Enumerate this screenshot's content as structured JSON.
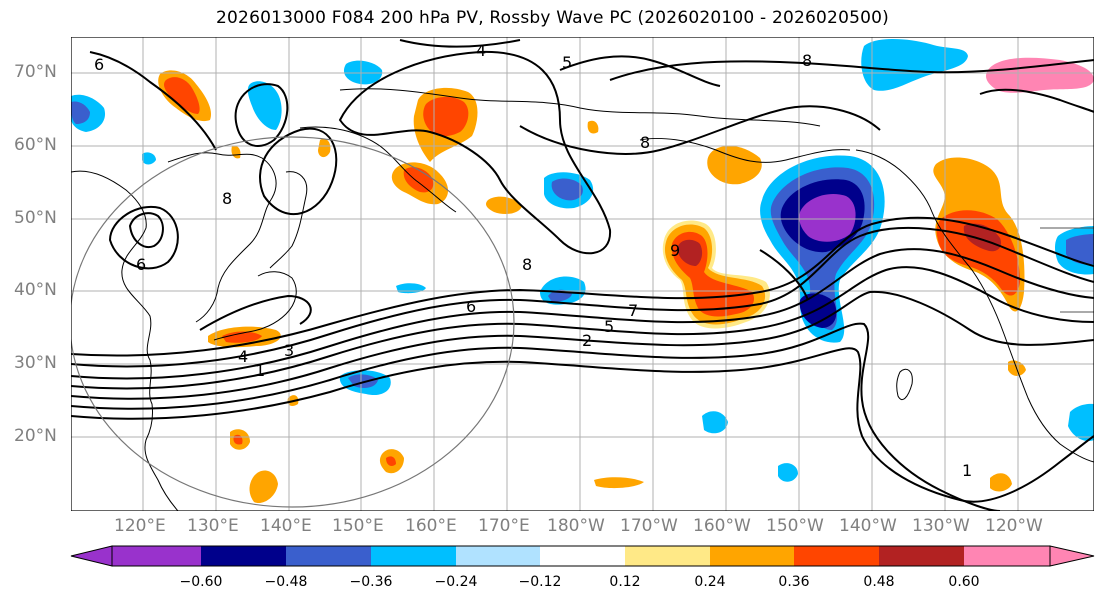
{
  "title": "2026013000 F084 200 hPa PV, Rossby Wave PC (2026020100 - 2026020500)",
  "lat_labels": [
    "70°N",
    "60°N",
    "50°N",
    "40°N",
    "30°N",
    "20°N"
  ],
  "lon_labels": [
    "120°E",
    "130°E",
    "140°E",
    "150°E",
    "160°E",
    "170°E",
    "180°W",
    "170°W",
    "160°W",
    "150°W",
    "140°W",
    "130°W",
    "120°W"
  ],
  "contour_labels": [
    "1",
    "2",
    "4",
    "5",
    "6",
    "7",
    "8",
    "3",
    "9"
  ],
  "colorbar": {
    "tick_labels": [
      "−0.60",
      "−0.48",
      "−0.36",
      "−0.24",
      "−0.12",
      "0.12",
      "0.24",
      "0.36",
      "0.48",
      "0.60"
    ],
    "colors": [
      "#9932cc",
      "#00008b",
      "#3a5fcd",
      "#00bfff",
      "#b0e2ff",
      "#ffffff",
      "#ffe987",
      "#ffa500",
      "#ff4500",
      "#b22222",
      "#ff85b3"
    ]
  },
  "colors": {
    "purple": "#9932cc",
    "navy": "#00008b",
    "royal": "#3a5fcd",
    "sky": "#00bfff",
    "pale_blue": "#b0e2ff",
    "yellow": "#ffe987",
    "orange": "#ffa500",
    "red_orange": "#ff4500",
    "firebrick": "#b22222",
    "pink": "#ff85b3"
  }
}
